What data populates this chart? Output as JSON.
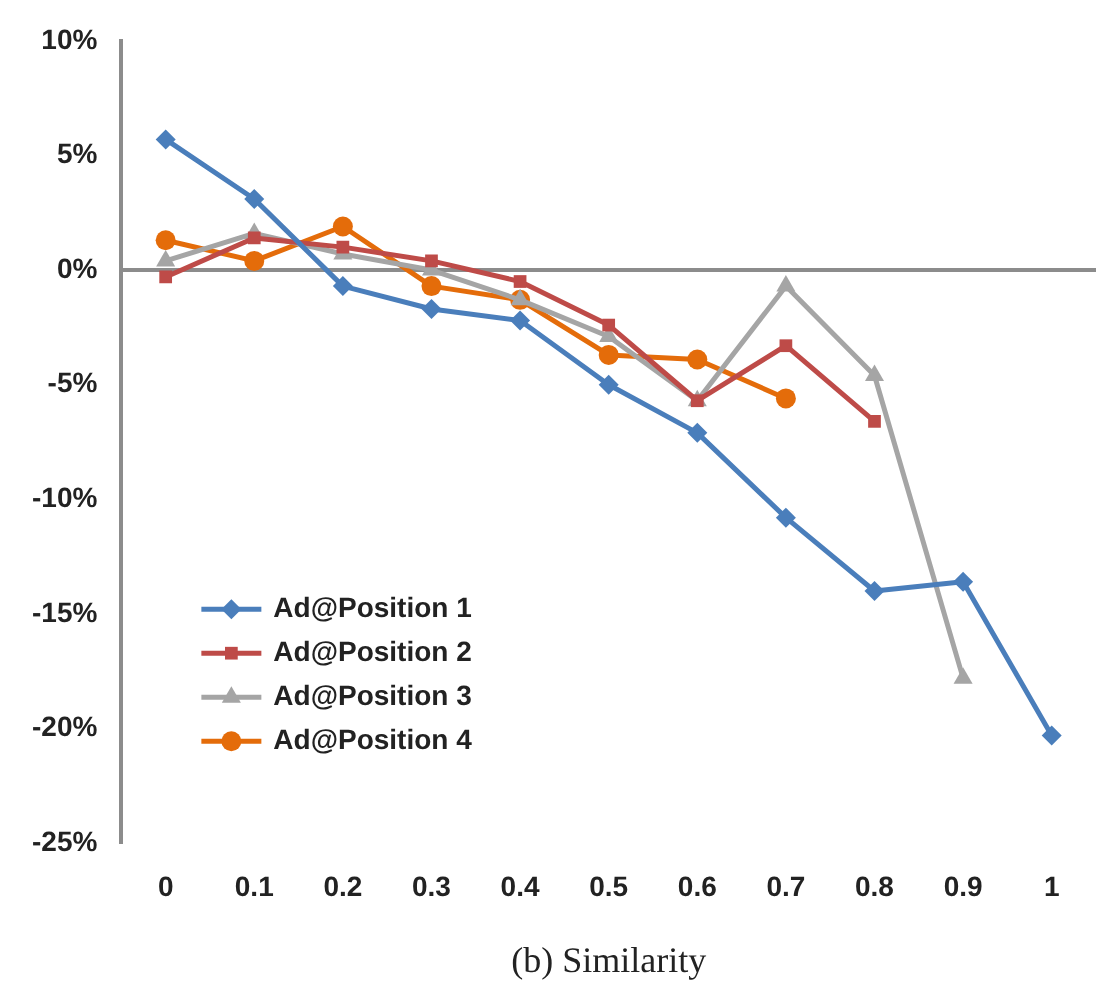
{
  "chart_data": {
    "type": "line",
    "xlabel": "(b) Similarity",
    "categories": [
      "0",
      "0.1",
      "0.2",
      "0.3",
      "0.4",
      "0.5",
      "0.6",
      "0.7",
      "0.8",
      "0.9",
      "1"
    ],
    "series": [
      {
        "name": "Ad@Position 1",
        "color": "#4a7ebb",
        "marker": "diamond",
        "values": [
          5.7,
          3.1,
          -0.7,
          -1.7,
          -2.2,
          -5.0,
          -7.1,
          -10.8,
          -14.0,
          -13.6,
          -20.3
        ]
      },
      {
        "name": "Ad@Position 2",
        "color": "#be4b48",
        "marker": "square",
        "values": [
          -0.3,
          1.4,
          1.0,
          0.4,
          -0.5,
          -2.4,
          -5.7,
          -3.3,
          -6.6,
          null,
          null
        ]
      },
      {
        "name": "Ad@Position 3",
        "color": "#a5a5a5",
        "marker": "triangle",
        "values": [
          0.4,
          1.6,
          0.7,
          0,
          -1.3,
          -2.9,
          -5.7,
          -0.7,
          -4.6,
          -17.8,
          null
        ]
      },
      {
        "name": "Ad@Position 4",
        "color": "#e46c0a",
        "marker": "circle",
        "values": [
          1.3,
          0.4,
          1.9,
          -0.7,
          -1.3,
          -3.7,
          -3.9,
          -5.6,
          null,
          null,
          null
        ]
      }
    ],
    "ylim": [
      -25,
      10
    ],
    "yticks": [
      {
        "value": -25,
        "label": "-25%"
      },
      {
        "value": -20,
        "label": "-20%"
      },
      {
        "value": -15,
        "label": "-15%"
      },
      {
        "value": -10,
        "label": "-10%"
      },
      {
        "value": -5,
        "label": "-5%"
      },
      {
        "value": 0,
        "label": "0%"
      },
      {
        "value": 5,
        "label": "5%"
      },
      {
        "value": 10,
        "label": "10%"
      }
    ],
    "ref_lines": [
      {
        "axis": "y",
        "value": 0,
        "color": "#8c8c8c"
      }
    ],
    "grid": false,
    "legend": "bottom left"
  }
}
